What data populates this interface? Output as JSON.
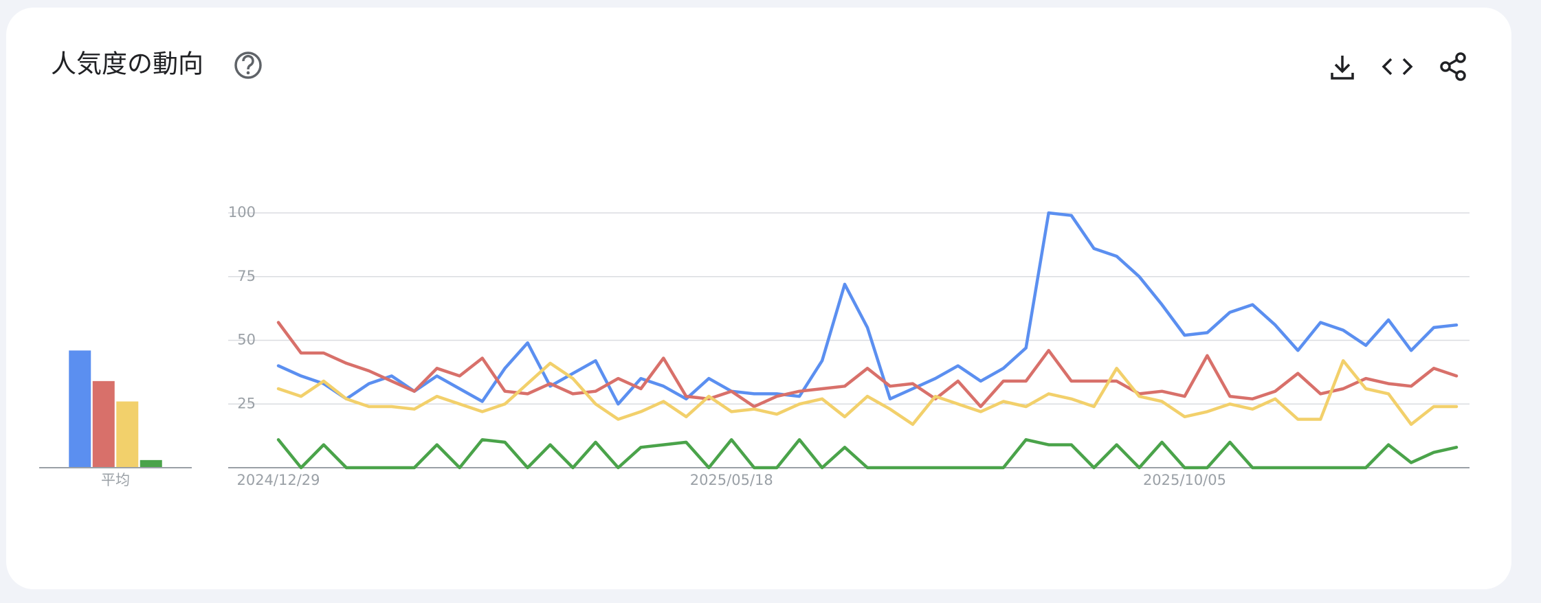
{
  "header": {
    "title": "人気度の動向"
  },
  "chart_data": [
    {
      "type": "bar",
      "categories": [
        "平均"
      ],
      "ylim": [
        0,
        100
      ],
      "series": [
        {
          "color": "#5b8ff0",
          "values": [
            46
          ]
        },
        {
          "color": "#d8706a",
          "values": [
            34
          ]
        },
        {
          "color": "#f2d06b",
          "values": [
            26
          ]
        },
        {
          "color": "#4aa34a",
          "values": [
            3
          ]
        }
      ]
    },
    {
      "type": "line",
      "ylim": [
        0,
        100
      ],
      "yticks": [
        25,
        50,
        75,
        100
      ],
      "grid": true,
      "categories": [
        "2024/12/29",
        null,
        null,
        null,
        null,
        null,
        null,
        null,
        null,
        null,
        null,
        null,
        null,
        null,
        null,
        null,
        null,
        null,
        null,
        null,
        "2025/05/18",
        null,
        null,
        null,
        null,
        null,
        null,
        null,
        null,
        null,
        null,
        null,
        null,
        null,
        null,
        null,
        null,
        null,
        null,
        null,
        "2025/10/05",
        null,
        null,
        null,
        null,
        null,
        null,
        null,
        null,
        null,
        null,
        null,
        null
      ],
      "series": [
        {
          "color": "#5b8ff0",
          "values": [
            40,
            36,
            33,
            27,
            33,
            36,
            30,
            36,
            31,
            26,
            39,
            49,
            32,
            37,
            42,
            25,
            35,
            32,
            27,
            35,
            30,
            29,
            29,
            28,
            42,
            72,
            55,
            27,
            31,
            35,
            40,
            34,
            39,
            47,
            100,
            99,
            86,
            83,
            75,
            64,
            52,
            53,
            61,
            64,
            56,
            46,
            57,
            54,
            48,
            58,
            46,
            55,
            56
          ]
        },
        {
          "color": "#d8706a",
          "values": [
            57,
            45,
            45,
            41,
            38,
            34,
            30,
            39,
            36,
            43,
            30,
            29,
            33,
            29,
            30,
            35,
            31,
            43,
            28,
            27,
            30,
            24,
            28,
            30,
            31,
            32,
            39,
            32,
            33,
            27,
            34,
            24,
            34,
            34,
            46,
            34,
            34,
            34,
            29,
            30,
            28,
            44,
            28,
            27,
            30,
            37,
            29,
            31,
            35,
            33,
            32,
            39,
            36
          ]
        },
        {
          "color": "#f2d06b",
          "values": [
            31,
            28,
            34,
            27,
            24,
            24,
            23,
            28,
            25,
            22,
            25,
            33,
            41,
            35,
            25,
            19,
            22,
            26,
            20,
            28,
            22,
            23,
            21,
            25,
            27,
            20,
            28,
            23,
            17,
            28,
            25,
            22,
            26,
            24,
            29,
            27,
            24,
            39,
            28,
            26,
            20,
            22,
            25,
            23,
            27,
            19,
            19,
            42,
            31,
            29,
            17,
            24,
            24
          ]
        },
        {
          "color": "#4aa34a",
          "values": [
            11,
            0,
            9,
            0,
            0,
            0,
            0,
            9,
            0,
            11,
            10,
            0,
            9,
            0,
            10,
            0,
            8,
            9,
            10,
            0,
            11,
            0,
            0,
            11,
            0,
            8,
            0,
            0,
            0,
            0,
            0,
            0,
            0,
            11,
            9,
            9,
            0,
            9,
            0,
            10,
            0,
            0,
            10,
            0,
            0,
            0,
            0,
            0,
            0,
            9,
            2,
            6,
            8
          ]
        }
      ]
    }
  ]
}
